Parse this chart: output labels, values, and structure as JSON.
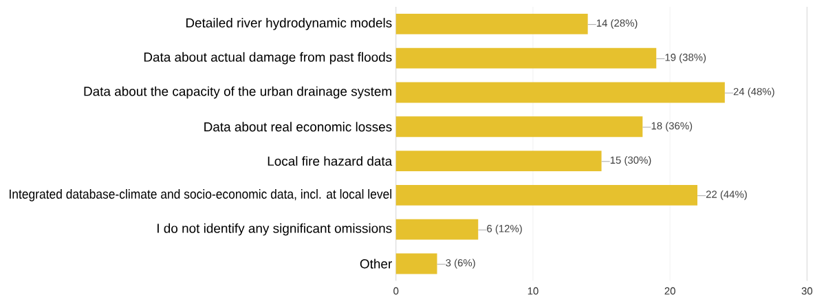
{
  "chart_data": {
    "type": "bar",
    "orientation": "horizontal",
    "categories": [
      "Detailed river hydrodynamic models",
      "Data about actual damage from past floods",
      "Data about the capacity of the urban drainage system",
      "Data about real economic losses",
      "Local fire hazard data",
      "Integrated database-climate and socio-economic data, incl. at local level",
      "I do not identify any significant omissions",
      "Other"
    ],
    "values": [
      14,
      19,
      24,
      18,
      15,
      22,
      6,
      3
    ],
    "value_labels": [
      "14 (28%)",
      "19 (38%)",
      "24 (48%)",
      "18 (36%)",
      "15 (30%)",
      "22 (44%)",
      "6 (12%)",
      "3 (6%)"
    ],
    "color": "#e6c12e",
    "xlim": [
      0,
      30
    ],
    "xticks": [
      0,
      10,
      20,
      30
    ],
    "grid": "x"
  }
}
